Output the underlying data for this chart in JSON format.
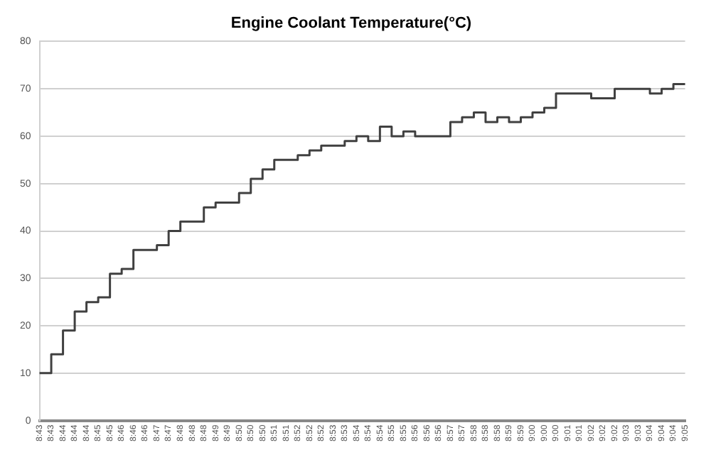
{
  "chart_data": {
    "type": "step",
    "title": "Engine Coolant Temperature(°C)",
    "categories": [
      "8:43",
      "8:43",
      "8:44",
      "8:44",
      "8:44",
      "8:45",
      "8:45",
      "8:46",
      "8:46",
      "8:46",
      "8:47",
      "8:47",
      "8:48",
      "8:48",
      "8:48",
      "8:49",
      "8:49",
      "8:50",
      "8:50",
      "8:50",
      "8:51",
      "8:51",
      "8:52",
      "8:52",
      "8:52",
      "8:53",
      "8:53",
      "8:54",
      "8:54",
      "8:54",
      "8:55",
      "8:55",
      "8:56",
      "8:56",
      "8:56",
      "8:57",
      "8:57",
      "8:58",
      "8:58",
      "8:58",
      "8:59",
      "8:59",
      "9:00",
      "9:00",
      "9:00",
      "9:01",
      "9:01",
      "9:02",
      "9:02",
      "9:02",
      "9:03",
      "9:03",
      "9:04",
      "9:04",
      "9:04",
      "9:05"
    ],
    "series": [
      {
        "color": "#404040",
        "values": [
          10,
          10,
          14,
          19,
          23,
          25,
          26,
          31,
          32,
          36,
          36,
          37,
          40,
          42,
          42,
          45,
          46,
          46,
          48,
          51,
          53,
          55,
          55,
          56,
          57,
          58,
          58,
          59,
          60,
          59,
          62,
          60,
          61,
          60,
          60,
          60,
          63,
          64,
          65,
          63,
          64,
          63,
          64,
          65,
          66,
          69,
          69,
          69,
          68,
          68,
          70,
          70,
          70,
          69,
          70,
          71
        ]
      }
    ],
    "ylim": [
      0,
      80
    ],
    "yticks": [
      0,
      10,
      20,
      30,
      40,
      50,
      60,
      70,
      80
    ],
    "grid": "y",
    "legend": false,
    "marker": "none",
    "line_style": "solid"
  }
}
